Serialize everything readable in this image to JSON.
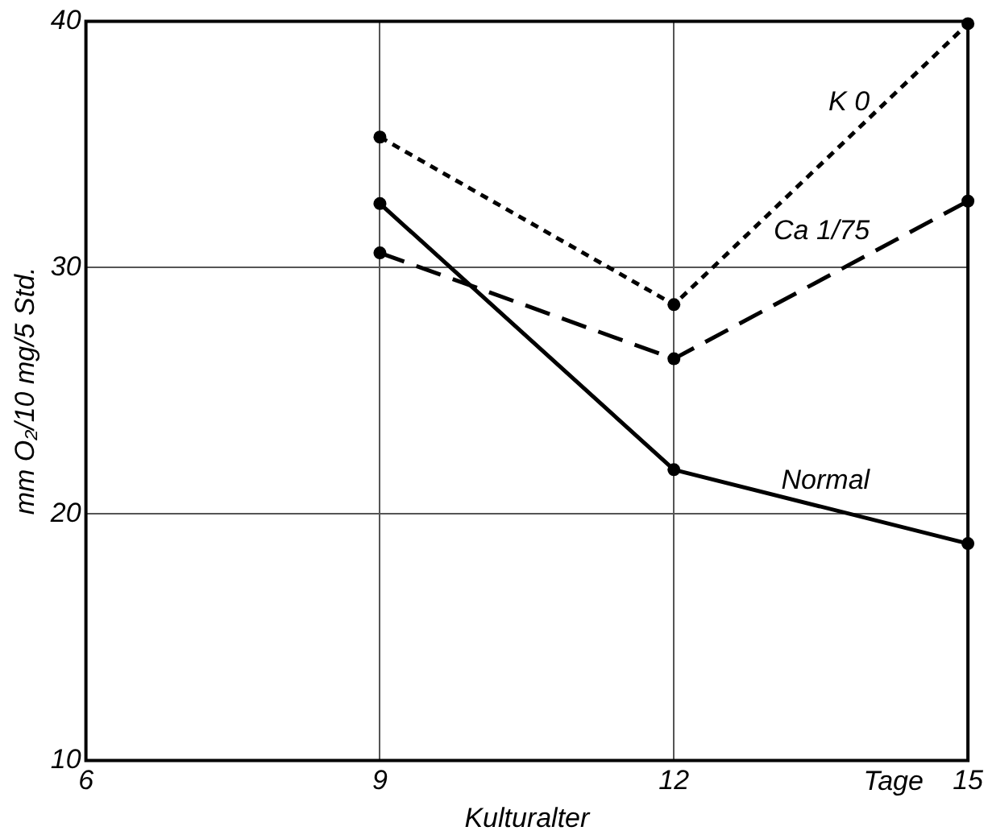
{
  "chart_data": {
    "type": "line",
    "xlabel": "Kulturalter",
    "ylabel": "mm O₂/10 mg/5 Std.",
    "x": [
      9,
      12,
      15
    ],
    "series": [
      {
        "name": "K 0",
        "color": "#000000",
        "values": [
          35.3,
          28.5,
          39.9
        ],
        "line_style": "dotted"
      },
      {
        "name": "Ca 1/75",
        "color": "#000000",
        "values": [
          30.6,
          26.3,
          32.7
        ],
        "line_style": "dashed"
      },
      {
        "name": "Normal",
        "color": "#000000",
        "values": [
          32.6,
          21.8,
          18.8
        ],
        "line_style": "solid"
      }
    ],
    "xlim": [
      6,
      15
    ],
    "xticks": [
      6,
      9,
      12,
      15
    ],
    "ylim": [
      10,
      40
    ],
    "yticks": [
      10,
      20,
      30,
      40
    ],
    "grid": true,
    "legend": false,
    "marker": "circle",
    "annotations": [
      "Tage"
    ]
  }
}
